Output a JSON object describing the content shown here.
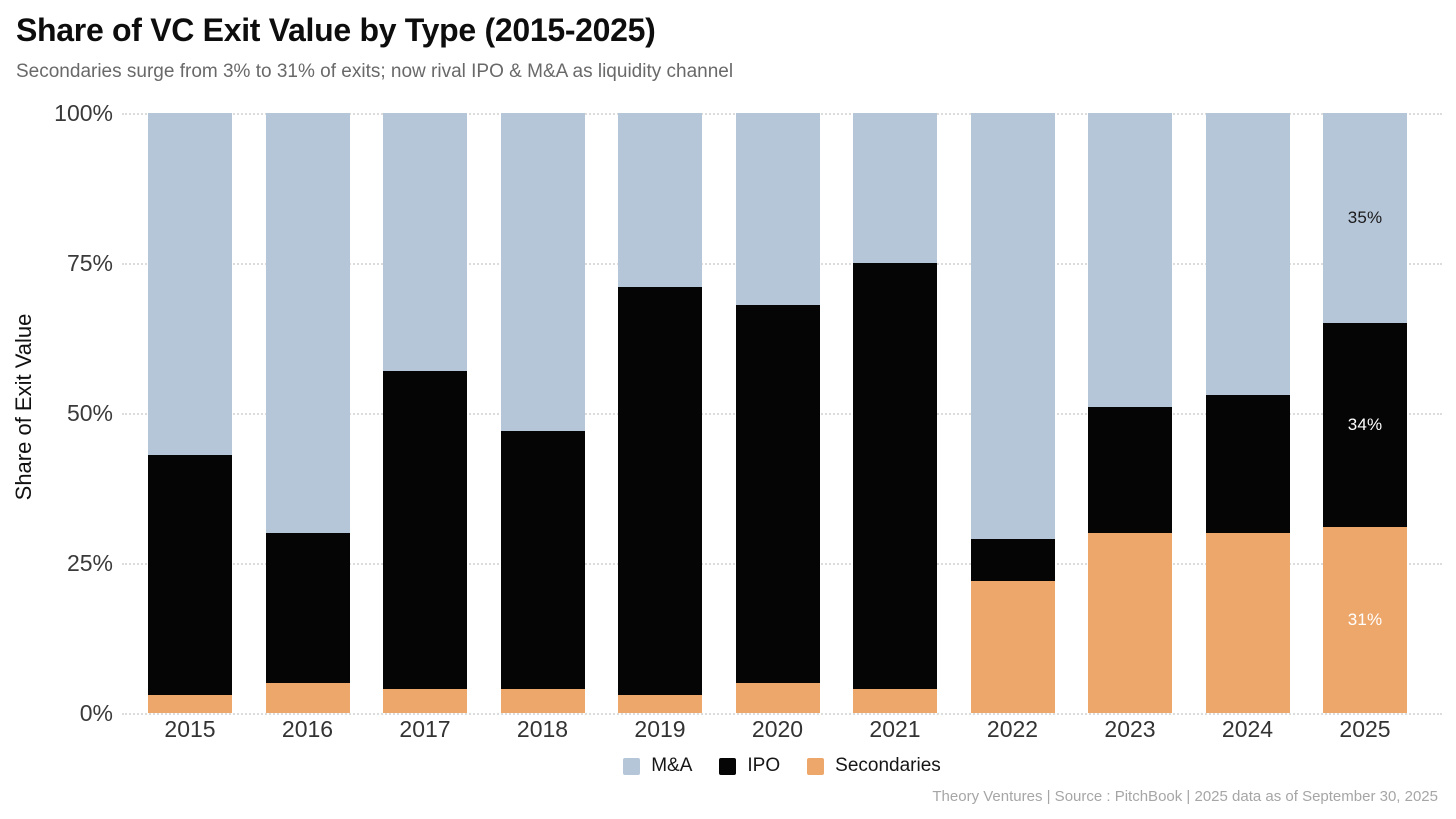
{
  "page": {
    "title": "Share of VC Exit Value by Type (2015-2025)",
    "subtitle": "Secondaries surge from 3% to 31% of exits; now rival IPO & M&A as liquidity channel",
    "footer": "Theory Ventures | Source : PitchBook | 2025 data as of September 30, 2025"
  },
  "chart_data": {
    "type": "bar",
    "variant": "stacked-100-percent",
    "title": "Share of VC Exit Value by Type (2015-2025)",
    "subtitle": "Secondaries surge from 3% to 31% of exits; now rival IPO & M&A as liquidity channel",
    "xlabel": "",
    "ylabel": "Share of Exit Value",
    "categories": [
      "2015",
      "2016",
      "2017",
      "2018",
      "2019",
      "2020",
      "2021",
      "2022",
      "2023",
      "2024",
      "2025"
    ],
    "series": [
      {
        "name": "M&A",
        "color": "#b6c6d9",
        "values": [
          57,
          70,
          43,
          53,
          29,
          32,
          25,
          71,
          49,
          47,
          35
        ]
      },
      {
        "name": "IPO",
        "color": "#050505",
        "values": [
          40,
          25,
          53,
          43,
          68,
          63,
          71,
          7,
          21,
          23,
          34
        ]
      },
      {
        "name": "Secondaries",
        "color": "#eea76b",
        "values": [
          3,
          5,
          4,
          4,
          3,
          5,
          4,
          22,
          30,
          30,
          31
        ]
      }
    ],
    "stack_order_bottom_to_top": [
      "Secondaries",
      "IPO",
      "M&A"
    ],
    "y_axis": {
      "range": [
        0,
        100
      ],
      "gridline_style": "dotted",
      "ticks": [
        {
          "label": "100%",
          "value": 100
        },
        {
          "label": "75%",
          "value": 75
        },
        {
          "label": "50%",
          "value": 50
        },
        {
          "label": "25%",
          "value": 25
        },
        {
          "label": "0%",
          "value": 0
        }
      ]
    },
    "legend": {
      "position": "bottom-center",
      "items": [
        "M&A",
        "IPO",
        "Secondaries"
      ]
    },
    "data_labels": {
      "category": "2025",
      "labels": [
        {
          "series": "M&A",
          "text": "35%",
          "text_color": "#1a1a1a"
        },
        {
          "series": "IPO",
          "text": "34%",
          "text_color": "#ffffff"
        },
        {
          "series": "Secondaries",
          "text": "31%",
          "text_color": "#ffffff"
        }
      ]
    }
  },
  "colors": {
    "background": "#ffffff",
    "grid": "#dcdcdc",
    "title_text": "#0d0d0d",
    "subtitle_text": "#696969",
    "tick_text": "#3a3a3a",
    "footer_text": "#a6a6a6"
  }
}
